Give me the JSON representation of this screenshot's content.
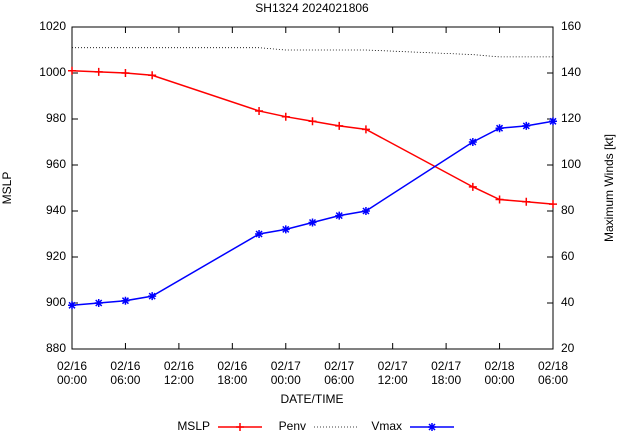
{
  "chart_data": {
    "type": "line",
    "title": "SH1324 2024021806",
    "x_label": "DATE/TIME",
    "y_label": "MSLP",
    "y2_label": "Maximum Winds [kt]",
    "x": [
      "02/16\n00:00",
      "02/16\n03:00",
      "02/16\n06:00",
      "02/16\n09:00",
      "02/16\n21:00",
      "02/17\n00:00",
      "02/17\n03:00",
      "02/17\n06:00",
      "02/17\n09:00",
      "02/17\n21:00",
      "02/18\n00:00",
      "02/18\n03:00",
      "02/18\n06:00"
    ],
    "xlim": [
      "02/16\n00:00",
      "02/18\n06:00"
    ],
    "xticks": [
      "02/16\n00:00",
      "02/16\n06:00",
      "02/16\n12:00",
      "02/16\n18:00",
      "02/17\n00:00",
      "02/17\n06:00",
      "02/17\n12:00",
      "02/17\n18:00",
      "02/18\n00:00",
      "02/18\n06:00"
    ],
    "ylim": [
      880,
      1020
    ],
    "yticks": [
      880,
      900,
      920,
      940,
      960,
      980,
      1000,
      1020
    ],
    "y2lim": [
      20,
      160
    ],
    "y2ticks": [
      20,
      40,
      60,
      80,
      100,
      120,
      140,
      160
    ],
    "series": [
      {
        "name": "MSLP",
        "color": "#ff0000",
        "marker": "plus",
        "dash": "solid",
        "values": [
          1001,
          1000.5,
          1000,
          999,
          983.5,
          981,
          979,
          977,
          975.5,
          950.5,
          945,
          944,
          943
        ]
      },
      {
        "name": "Penv",
        "color": "#000000",
        "marker": "none",
        "dash": "dotted",
        "values": [
          1011,
          1011,
          1011,
          1011,
          1011,
          1010,
          1010,
          1010,
          1010,
          1008,
          1007,
          1007,
          1007
        ]
      },
      {
        "name": "Vmax",
        "color": "#0000ff",
        "marker": "star",
        "dash": "solid",
        "axis": "y2",
        "values": [
          39,
          40,
          41,
          43,
          70,
          72,
          75,
          78,
          80,
          110,
          116,
          117,
          119
        ]
      }
    ]
  }
}
